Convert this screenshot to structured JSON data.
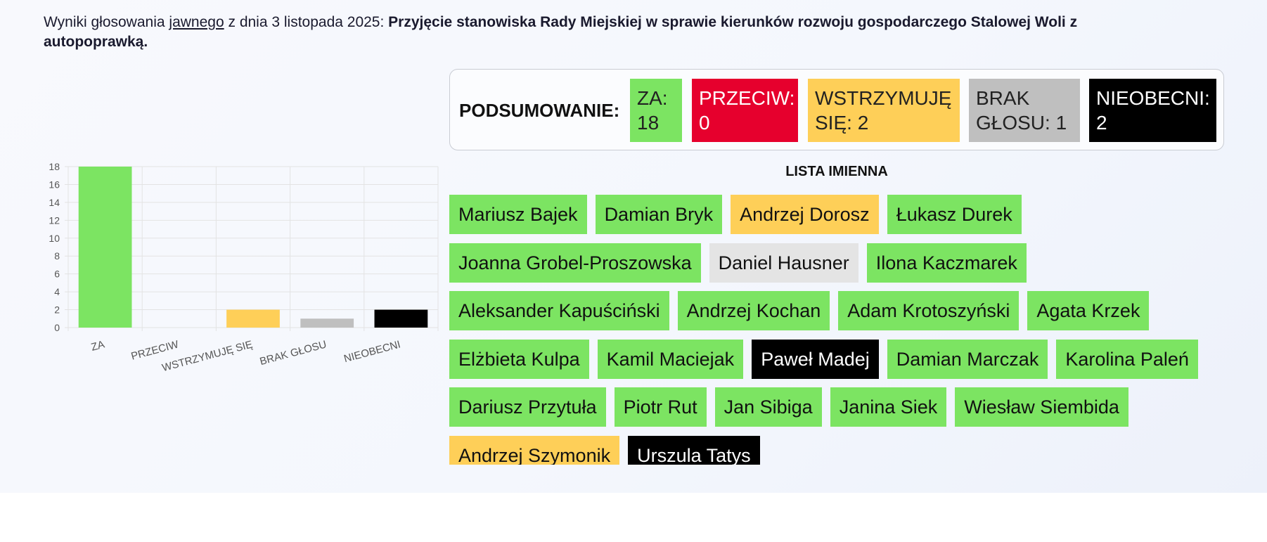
{
  "header": {
    "prefix": "Wyniki głosowania",
    "mode": "jawnego",
    "date_text": "z dnia 3 listopada 2025:",
    "subject": "Przyjęcie stanowiska Rady Miejskiej w sprawie kierunków rozwoju gospodarczego Stalowej Woli z autopoprawką."
  },
  "summary": {
    "label": "PODSUMOWANIE:",
    "za": {
      "label": "ZA:",
      "value": "18"
    },
    "przeciw": {
      "label": "PRZECIW:",
      "value": "0"
    },
    "wstrzymuje": {
      "label": "WSTRZYMUJĘ SIĘ:",
      "value": "2"
    },
    "brak": {
      "label": "BRAK GŁOSU:",
      "value": "1"
    },
    "nieobecni": {
      "label": "NIEOBECNI:",
      "value": "2"
    }
  },
  "colors": {
    "za": "#7ce462",
    "przeciw": "#e6002d",
    "wstrzymuje": "#fecf58",
    "brak": "#bfbfbf",
    "nieobecni": "#000000"
  },
  "chart_data": {
    "type": "bar",
    "categories": [
      "ZA",
      "PRZECIW",
      "WSTRZYMUJĘ SIĘ",
      "BRAK GŁOSU",
      "NIEOBECNI"
    ],
    "values": [
      18,
      0,
      2,
      1,
      2
    ],
    "colors": [
      "#7ce462",
      "#e6002d",
      "#fecf58",
      "#bfbfbf",
      "#000000"
    ],
    "ylim": [
      0,
      18
    ],
    "yticks": [
      0,
      2,
      4,
      6,
      8,
      10,
      12,
      14,
      16,
      18
    ],
    "grid": true,
    "title": "",
    "xlabel": "",
    "ylabel": ""
  },
  "list_title": "LISTA IMIENNA",
  "rows": [
    [
      {
        "name": "Mariusz Bajek",
        "vote": "za"
      },
      {
        "name": "Damian Bryk",
        "vote": "za"
      },
      {
        "name": "Andrzej Dorosz",
        "vote": "wstrz"
      },
      {
        "name": "Łukasz Durek",
        "vote": "za"
      }
    ],
    [
      {
        "name": "Joanna Grobel-Proszowska",
        "vote": "za"
      },
      {
        "name": "Daniel Hausner",
        "vote": "brak"
      },
      {
        "name": "Ilona Kaczmarek",
        "vote": "za"
      }
    ],
    [
      {
        "name": "Aleksander Kapuściński",
        "vote": "za"
      },
      {
        "name": "Andrzej Kochan",
        "vote": "za"
      },
      {
        "name": "Adam Krotoszyński",
        "vote": "za"
      },
      {
        "name": "Agata Krzek",
        "vote": "za"
      }
    ],
    [
      {
        "name": "Elżbieta Kulpa",
        "vote": "za"
      },
      {
        "name": "Kamil Maciejak",
        "vote": "za"
      },
      {
        "name": "Paweł Madej",
        "vote": "nieob"
      },
      {
        "name": "Damian Marczak",
        "vote": "za"
      },
      {
        "name": "Karolina Paleń",
        "vote": "za"
      }
    ],
    [
      {
        "name": "Dariusz Przytuła",
        "vote": "za"
      },
      {
        "name": "Piotr Rut",
        "vote": "za"
      },
      {
        "name": "Jan Sibiga",
        "vote": "za"
      },
      {
        "name": "Janina Siek",
        "vote": "za"
      },
      {
        "name": "Wiesław Siembida",
        "vote": "za"
      }
    ],
    [
      {
        "name": "Andrzej Szymonik",
        "vote": "wstrz"
      },
      {
        "name": "Urszula Tatys",
        "vote": "nieob"
      }
    ]
  ]
}
